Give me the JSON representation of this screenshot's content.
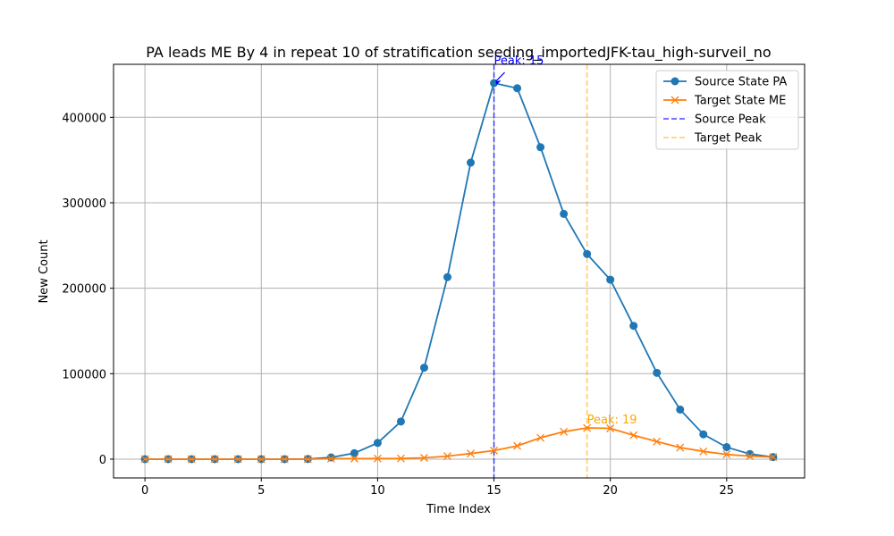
{
  "chart_data": {
    "type": "line",
    "title": "PA leads ME By 4 in repeat 10 of stratification seeding_importedJFK-tau_high-surveil_no",
    "xlabel": "Time Index",
    "ylabel": "New Count",
    "xlim": [
      -1.35,
      28.35
    ],
    "ylim": [
      -22000,
      462000
    ],
    "xticks": [
      0,
      5,
      10,
      15,
      20,
      25
    ],
    "yticks": [
      0,
      100000,
      200000,
      300000,
      400000
    ],
    "grid": true,
    "legend_position": "top-right",
    "x": [
      0,
      1,
      2,
      3,
      4,
      5,
      6,
      7,
      8,
      9,
      10,
      11,
      12,
      13,
      14,
      15,
      16,
      17,
      18,
      19,
      20,
      21,
      22,
      23,
      24,
      25,
      26,
      27
    ],
    "series": [
      {
        "name": "Source State PA",
        "marker": "circle",
        "color": "#1f77b4",
        "values": [
          0,
          0,
          0,
          0,
          0,
          0,
          0,
          200,
          2000,
          7000,
          19000,
          44000,
          107000,
          213000,
          347000,
          440000,
          434000,
          365000,
          287000,
          240000,
          210000,
          156000,
          101000,
          58000,
          29000,
          14000,
          6000,
          2500
        ]
      },
      {
        "name": "Target State ME",
        "marker": "x",
        "color": "#ff7f0e",
        "values": [
          0,
          0,
          0,
          0,
          0,
          0,
          0,
          0,
          500,
          600,
          700,
          800,
          1500,
          3500,
          6500,
          10000,
          15500,
          25000,
          32000,
          36500,
          36000,
          28000,
          20500,
          13500,
          9000,
          5500,
          3500,
          2500
        ]
      }
    ],
    "peaks": [
      {
        "name": "Source Peak",
        "x": 15,
        "color": "#0000ff",
        "annotation": "Peak: 15",
        "annotation_y": 440000
      },
      {
        "name": "Target Peak",
        "x": 19,
        "color": "#ffa500",
        "annotation": "Peak: 19",
        "annotation_y": 36500
      }
    ]
  }
}
